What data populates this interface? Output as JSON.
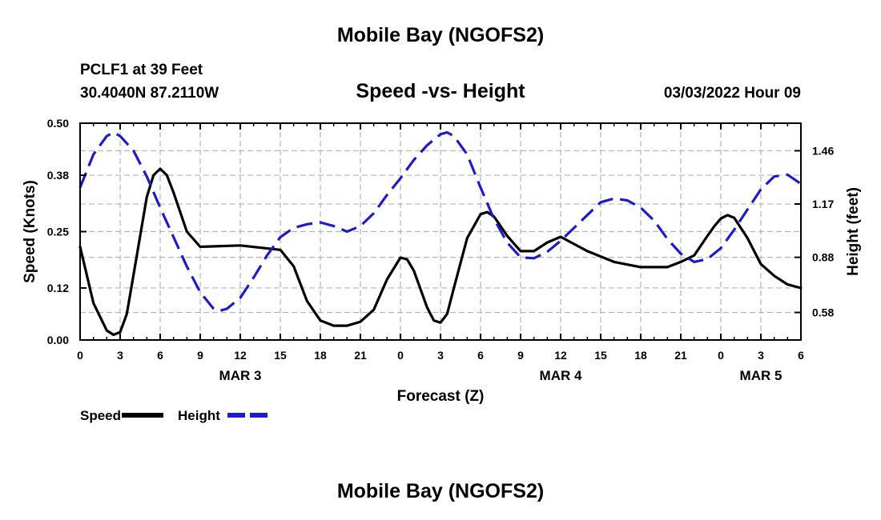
{
  "page": {
    "title_top": "Mobile Bay (NGOFS2)",
    "title_bottom": "Mobile Bay (NGOFS2)",
    "station_line": "PCLF1 at 39 Feet",
    "coords_line": "30.4040N  87.2110W",
    "subtitle": "Speed -vs- Height",
    "run_time": "03/03/2022 Hour 09"
  },
  "chart_data": {
    "type": "line",
    "title": "Speed -vs- Height",
    "xlabel": "Forecast (Z)",
    "ylabel": "Speed (Knots)",
    "y2label": "Height (feet)",
    "xlim": [
      0,
      54
    ],
    "ylim": [
      0,
      0.5
    ],
    "y2lim": [
      0.43,
      1.61
    ],
    "yticks": [
      "0.00",
      "0.12",
      "0.25",
      "0.38",
      "0.50"
    ],
    "y2ticks": [
      "0.58",
      "0.88",
      "1.17",
      "1.46"
    ],
    "xtick_hours": [
      0,
      3,
      6,
      9,
      12,
      15,
      18,
      21,
      24,
      27,
      30,
      33,
      36,
      39,
      42,
      45,
      48,
      51,
      54
    ],
    "xtick_labels": [
      "0",
      "3",
      "6",
      "9",
      "12",
      "15",
      "18",
      "21",
      "0",
      "3",
      "6",
      "9",
      "12",
      "15",
      "18",
      "21",
      "0",
      "3",
      "6"
    ],
    "date_labels": [
      {
        "hour": 12,
        "text": "MAR 3"
      },
      {
        "hour": 36,
        "text": "MAR 4"
      },
      {
        "hour": 51,
        "text": "MAR 5"
      }
    ],
    "grid": true,
    "legend_position": "bottom-left",
    "series": [
      {
        "name": "Speed",
        "axis": "left",
        "color": "#000000",
        "style": "solid",
        "x": [
          0,
          1,
          2,
          2.5,
          3,
          3.5,
          4,
          5,
          5.5,
          6,
          6.5,
          7,
          8,
          9,
          12,
          15,
          16,
          17,
          18,
          19,
          20,
          21,
          22,
          23,
          24,
          24.5,
          25,
          26,
          26.5,
          27,
          27.5,
          28,
          29,
          30,
          30.5,
          31,
          32,
          33,
          34,
          35,
          36,
          38,
          40,
          42,
          44,
          45,
          46,
          47,
          47.5,
          48,
          48.5,
          49,
          50,
          51,
          52,
          53,
          54
        ],
        "y": [
          0.215,
          0.085,
          0.022,
          0.012,
          0.018,
          0.06,
          0.15,
          0.33,
          0.38,
          0.395,
          0.38,
          0.34,
          0.25,
          0.215,
          0.218,
          0.208,
          0.17,
          0.09,
          0.045,
          0.033,
          0.033,
          0.042,
          0.07,
          0.14,
          0.19,
          0.186,
          0.16,
          0.075,
          0.045,
          0.04,
          0.06,
          0.12,
          0.235,
          0.29,
          0.295,
          0.285,
          0.24,
          0.205,
          0.205,
          0.225,
          0.238,
          0.205,
          0.18,
          0.168,
          0.168,
          0.18,
          0.195,
          0.24,
          0.262,
          0.28,
          0.288,
          0.282,
          0.235,
          0.175,
          0.148,
          0.128,
          0.12
        ]
      },
      {
        "name": "Height",
        "axis": "right",
        "color": "#1c1cc8",
        "style": "dashed",
        "x": [
          0,
          1,
          2,
          2.5,
          3,
          4,
          5,
          6,
          7,
          8,
          9,
          10,
          10.5,
          11,
          12,
          13,
          14,
          15,
          16,
          17,
          18,
          19,
          20,
          21,
          22,
          23,
          24,
          25,
          26,
          27,
          27.5,
          28,
          29,
          30,
          31,
          32,
          33,
          34,
          35,
          36,
          37,
          38,
          39,
          40,
          41,
          42,
          43,
          44,
          45,
          46,
          47,
          48,
          49,
          50,
          51,
          52,
          53,
          54
        ],
        "y": [
          1.26,
          1.44,
          1.54,
          1.56,
          1.54,
          1.46,
          1.32,
          1.15,
          0.99,
          0.83,
          0.69,
          0.6,
          0.59,
          0.6,
          0.66,
          0.77,
          0.89,
          0.99,
          1.04,
          1.06,
          1.07,
          1.05,
          1.02,
          1.05,
          1.12,
          1.22,
          1.31,
          1.41,
          1.49,
          1.55,
          1.56,
          1.54,
          1.44,
          1.26,
          1.09,
          0.96,
          0.88,
          0.875,
          0.91,
          0.97,
          1.04,
          1.11,
          1.18,
          1.2,
          1.19,
          1.15,
          1.08,
          0.98,
          0.9,
          0.855,
          0.87,
          0.93,
          1.03,
          1.14,
          1.25,
          1.32,
          1.33,
          1.28
        ]
      }
    ]
  }
}
